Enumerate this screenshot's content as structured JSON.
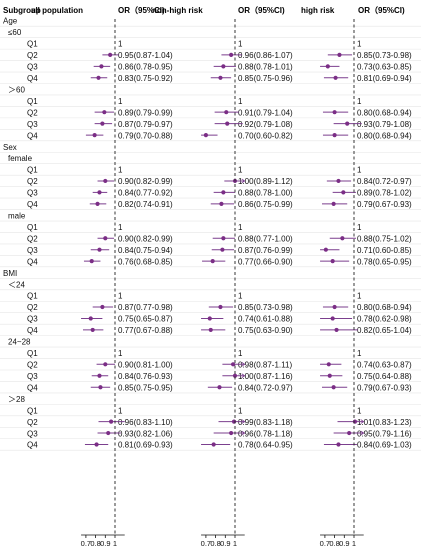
{
  "headers": {
    "subgroup": "Subgroup",
    "panel_titles": [
      "all population",
      "non-high risk",
      "high risk"
    ],
    "or_label": "OR（95%CI)"
  },
  "colors": {
    "bg": "#ffffff",
    "grid": "#e6e6e6",
    "ci": "#7b3f8e",
    "point": "#7b2e86",
    "refline": "#222222",
    "axis": "#111111",
    "text": "#111111"
  },
  "chart_data": {
    "type": "forest",
    "reference_value": 1,
    "xlim": [
      0.65,
      1.1
    ],
    "xticks": [
      0.7,
      0.8,
      0.9,
      1.0
    ],
    "xtick_labels": [
      "0.7",
      "0.8",
      "0.9",
      "1"
    ],
    "groups": [
      {
        "label": "Age",
        "sublabel": "≤60",
        "rows": [
          {
            "label": "Q1",
            "texts": [
              "1",
              "1",
              "1"
            ],
            "values": [
              null,
              null,
              null
            ]
          },
          {
            "label": "Q2",
            "texts": [
              "0.95(0.87-1.04)",
              "0.96(0.86-1.07)",
              "0.85(0.73-0.98)"
            ],
            "values": [
              [
                0.95,
                0.87,
                1.04
              ],
              [
                0.96,
                0.86,
                1.07
              ],
              [
                0.85,
                0.73,
                0.98
              ]
            ]
          },
          {
            "label": "Q3",
            "texts": [
              "0.86(0.78-0.95)",
              "0.88(0.78-1.01)",
              "0.73(0.63-0.85)"
            ],
            "values": [
              [
                0.86,
                0.78,
                0.95
              ],
              [
                0.88,
                0.78,
                1.01
              ],
              [
                0.73,
                0.63,
                0.85
              ]
            ]
          },
          {
            "label": "Q4",
            "texts": [
              "0.83(0.75-0.92)",
              "0.85(0.75-0.96)",
              "0.81(0.69-0.94)"
            ],
            "values": [
              [
                0.83,
                0.75,
                0.92
              ],
              [
                0.85,
                0.75,
                0.96
              ],
              [
                0.81,
                0.69,
                0.94
              ]
            ]
          }
        ]
      },
      {
        "label": "",
        "sublabel": "＞60",
        "rows": [
          {
            "label": "Q1",
            "texts": [
              "1",
              "1",
              "1"
            ],
            "values": [
              null,
              null,
              null
            ]
          },
          {
            "label": "Q2",
            "texts": [
              "0.89(0.79-0.99)",
              "0.91(0.79-1.04)",
              "0.80(0.68-0.94)"
            ],
            "values": [
              [
                0.89,
                0.79,
                0.99
              ],
              [
                0.91,
                0.79,
                1.04
              ],
              [
                0.8,
                0.68,
                0.94
              ]
            ]
          },
          {
            "label": "Q3",
            "texts": [
              "0.87(0.79-0.97)",
              "0.92(0.79-1.08)",
              "0.93(0.79-1.08)"
            ],
            "values": [
              [
                0.87,
                0.79,
                0.97
              ],
              [
                0.92,
                0.79,
                1.08
              ],
              [
                0.93,
                0.79,
                1.08
              ]
            ]
          },
          {
            "label": "Q4",
            "texts": [
              "0.79(0.70-0.88)",
              "0.70(0.60-0.82)",
              "0.80(0.68-0.94)"
            ],
            "values": [
              [
                0.79,
                0.7,
                0.88
              ],
              [
                0.7,
                0.6,
                0.82
              ],
              [
                0.8,
                0.68,
                0.94
              ]
            ]
          }
        ]
      },
      {
        "label": "Sex",
        "sublabel": "female",
        "rows": [
          {
            "label": "Q1",
            "texts": [
              "1",
              "1",
              "1"
            ],
            "values": [
              null,
              null,
              null
            ]
          },
          {
            "label": "Q2",
            "texts": [
              "0.90(0.82-0.99)",
              "1.00(0.89-1.12)",
              "0.84(0.72-0.97)"
            ],
            "values": [
              [
                0.9,
                0.82,
                0.99
              ],
              [
                1.0,
                0.89,
                1.12
              ],
              [
                0.84,
                0.72,
                0.97
              ]
            ]
          },
          {
            "label": "Q3",
            "texts": [
              "0.84(0.77-0.92)",
              "0.88(0.78-1.00)",
              "0.89(0.78-1.02)"
            ],
            "values": [
              [
                0.84,
                0.77,
                0.92
              ],
              [
                0.88,
                0.78,
                1.0
              ],
              [
                0.89,
                0.78,
                1.02
              ]
            ]
          },
          {
            "label": "Q4",
            "texts": [
              "0.82(0.74-0.91)",
              "0.86(0.75-0.99)",
              "0.79(0.67-0.93)"
            ],
            "values": [
              [
                0.82,
                0.74,
                0.91
              ],
              [
                0.86,
                0.75,
                0.99
              ],
              [
                0.79,
                0.67,
                0.93
              ]
            ]
          }
        ]
      },
      {
        "label": "",
        "sublabel": "male",
        "rows": [
          {
            "label": "Q1",
            "texts": [
              "1",
              "1",
              "1"
            ],
            "values": [
              null,
              null,
              null
            ]
          },
          {
            "label": "Q2",
            "texts": [
              "0.90(0.82-0.99)",
              "0.88(0.77-1.00)",
              "0.88(0.75-1.02)"
            ],
            "values": [
              [
                0.9,
                0.82,
                0.99
              ],
              [
                0.88,
                0.77,
                1.0
              ],
              [
                0.88,
                0.75,
                1.02
              ]
            ]
          },
          {
            "label": "Q3",
            "texts": [
              "0.84(0.75-0.94)",
              "0.87(0.76-0.99)",
              "0.71(0.60-0.85)"
            ],
            "values": [
              [
                0.84,
                0.75,
                0.94
              ],
              [
                0.87,
                0.76,
                0.99
              ],
              [
                0.71,
                0.6,
                0.85
              ]
            ]
          },
          {
            "label": "Q4",
            "texts": [
              "0.76(0.68-0.85)",
              "0.77(0.66-0.90)",
              "0.78(0.65-0.95)"
            ],
            "values": [
              [
                0.76,
                0.68,
                0.85
              ],
              [
                0.77,
                0.66,
                0.9
              ],
              [
                0.78,
                0.65,
                0.95
              ]
            ]
          }
        ]
      },
      {
        "label": "BMI",
        "sublabel": "＜24",
        "rows": [
          {
            "label": "Q1",
            "texts": [
              "1",
              "1",
              "1"
            ],
            "values": [
              null,
              null,
              null
            ]
          },
          {
            "label": "Q2",
            "texts": [
              "0.87(0.77-0.98)",
              "0.85(0.73-0.98)",
              "0.80(0.68-0.94)"
            ],
            "values": [
              [
                0.87,
                0.77,
                0.98
              ],
              [
                0.85,
                0.73,
                0.98
              ],
              [
                0.8,
                0.68,
                0.94
              ]
            ]
          },
          {
            "label": "Q3",
            "texts": [
              "0.75(0.65-0.87)",
              "0.74(0.61-0.88)",
              "0.78(0.62-0.98)"
            ],
            "values": [
              [
                0.75,
                0.65,
                0.87
              ],
              [
                0.74,
                0.61,
                0.88
              ],
              [
                0.78,
                0.62,
                0.98
              ]
            ]
          },
          {
            "label": "Q4",
            "texts": [
              "0.77(0.67-0.88)",
              "0.75(0.63-0.90)",
              "0.82(0.65-1.04)"
            ],
            "values": [
              [
                0.77,
                0.67,
                0.88
              ],
              [
                0.75,
                0.63,
                0.9
              ],
              [
                0.82,
                0.65,
                1.04
              ]
            ]
          }
        ]
      },
      {
        "label": "",
        "sublabel": "24~28",
        "rows": [
          {
            "label": "Q1",
            "texts": [
              "1",
              "1",
              "1"
            ],
            "values": [
              null,
              null,
              null
            ]
          },
          {
            "label": "Q2",
            "texts": [
              "0.90(0.81-1.00)",
              "0.98(0.87-1.11)",
              "0.74(0.63-0.87)"
            ],
            "values": [
              [
                0.9,
                0.81,
                1.0
              ],
              [
                0.98,
                0.87,
                1.11
              ],
              [
                0.74,
                0.63,
                0.87
              ]
            ]
          },
          {
            "label": "Q3",
            "texts": [
              "0.84(0.76-0.93)",
              "1.00(0.87-1.16)",
              "0.75(0.64-0.88)"
            ],
            "values": [
              [
                0.84,
                0.76,
                0.93
              ],
              [
                1.0,
                0.87,
                1.16
              ],
              [
                0.75,
                0.64,
                0.88
              ]
            ]
          },
          {
            "label": "Q4",
            "texts": [
              "0.85(0.75-0.95)",
              "0.84(0.72-0.97)",
              "0.79(0.67-0.93)"
            ],
            "values": [
              [
                0.85,
                0.75,
                0.95
              ],
              [
                0.84,
                0.72,
                0.97
              ],
              [
                0.79,
                0.67,
                0.93
              ]
            ]
          }
        ]
      },
      {
        "label": "",
        "sublabel": "＞28",
        "rows": [
          {
            "label": "Q1",
            "texts": [
              "1",
              "1",
              "1"
            ],
            "values": [
              null,
              null,
              null
            ]
          },
          {
            "label": "Q2",
            "texts": [
              "0.96(0.83-1.10)",
              "0.99(0.83-1.18)",
              "1.01(0.83-1.23)"
            ],
            "values": [
              [
                0.96,
                0.83,
                1.1
              ],
              [
                0.99,
                0.83,
                1.18
              ],
              [
                1.01,
                0.83,
                1.23
              ]
            ]
          },
          {
            "label": "Q3",
            "texts": [
              "0.93(0.82-1.06)",
              "0.96(0.78-1.18)",
              "0.95(0.79-1.16)"
            ],
            "values": [
              [
                0.93,
                0.82,
                1.06
              ],
              [
                0.96,
                0.78,
                1.18
              ],
              [
                0.95,
                0.79,
                1.16
              ]
            ]
          },
          {
            "label": "Q4",
            "texts": [
              "0.81(0.69-0.93)",
              "0.78(0.64-0.95)",
              "0.84(0.69-1.03)"
            ],
            "values": [
              [
                0.81,
                0.69,
                0.93
              ],
              [
                0.78,
                0.64,
                0.95
              ],
              [
                0.84,
                0.69,
                1.03
              ]
            ]
          }
        ]
      }
    ]
  }
}
